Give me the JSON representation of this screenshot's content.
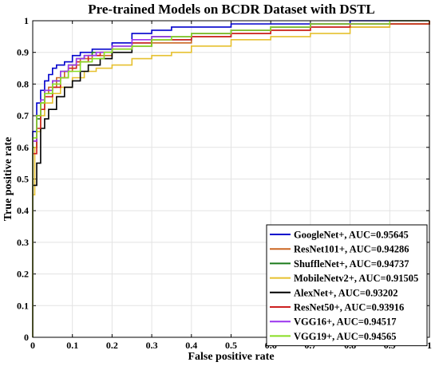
{
  "chart_data": {
    "type": "line",
    "title": "Pre-trained Models on BCDR Dataset with DSTL",
    "xlabel": "False positive rate",
    "ylabel": "True positive rate",
    "xlim": [
      0,
      1
    ],
    "ylim": [
      0,
      1
    ],
    "xticks": [
      "0",
      "0.1",
      "0.2",
      "0.3",
      "0.4",
      "0.5",
      "0.6",
      "0.7",
      "0.8",
      "0.9",
      "1"
    ],
    "yticks": [
      "0",
      "0.1",
      "0.2",
      "0.3",
      "0.4",
      "0.5",
      "0.6",
      "0.7",
      "0.8",
      "0.9",
      "1"
    ],
    "grid": true,
    "legend_position": "bottom-right",
    "series": [
      {
        "name": "GoogleNet+, AUC=0.95645",
        "color": "#0000cc",
        "x": [
          0,
          0,
          0.01,
          0.01,
          0.02,
          0.03,
          0.04,
          0.05,
          0.06,
          0.08,
          0.1,
          0.12,
          0.15,
          0.2,
          0.25,
          0.3,
          0.35,
          0.4,
          0.5,
          0.6,
          0.7,
          0.8,
          0.9,
          1
        ],
        "y": [
          0,
          0.65,
          0.68,
          0.74,
          0.78,
          0.81,
          0.83,
          0.85,
          0.86,
          0.87,
          0.89,
          0.9,
          0.91,
          0.93,
          0.96,
          0.97,
          0.98,
          0.98,
          0.99,
          0.99,
          0.99,
          1,
          1,
          1
        ]
      },
      {
        "name": "ResNet101+, AUC=0.94286",
        "color": "#cc6622",
        "x": [
          0,
          0,
          0.01,
          0.02,
          0.03,
          0.04,
          0.06,
          0.08,
          0.1,
          0.12,
          0.15,
          0.2,
          0.25,
          0.3,
          0.4,
          0.5,
          0.6,
          0.7,
          0.8,
          0.9,
          0.95,
          1
        ],
        "y": [
          0,
          0.62,
          0.7,
          0.74,
          0.77,
          0.79,
          0.82,
          0.84,
          0.86,
          0.88,
          0.89,
          0.91,
          0.92,
          0.93,
          0.95,
          0.96,
          0.97,
          0.98,
          0.98,
          0.99,
          0.99,
          1
        ]
      },
      {
        "name": "ShuffleNet+, AUC=0.94737",
        "color": "#1a7a1a",
        "x": [
          0,
          0,
          0.01,
          0.02,
          0.03,
          0.05,
          0.07,
          0.09,
          0.11,
          0.13,
          0.15,
          0.2,
          0.25,
          0.3,
          0.4,
          0.5,
          0.6,
          0.7,
          0.8,
          0.9,
          1
        ],
        "y": [
          0,
          0.6,
          0.69,
          0.74,
          0.78,
          0.81,
          0.84,
          0.86,
          0.88,
          0.89,
          0.9,
          0.92,
          0.93,
          0.95,
          0.96,
          0.97,
          0.98,
          0.99,
          0.99,
          0.99,
          1
        ]
      },
      {
        "name": "MobileNetv2+, AUC=0.91505",
        "color": "#e6c02e",
        "x": [
          0,
          0,
          0.005,
          0.01,
          0.02,
          0.03,
          0.05,
          0.07,
          0.1,
          0.13,
          0.16,
          0.2,
          0.25,
          0.3,
          0.35,
          0.4,
          0.5,
          0.6,
          0.7,
          0.8,
          0.9,
          0.95,
          1
        ],
        "y": [
          0,
          0.45,
          0.6,
          0.65,
          0.7,
          0.74,
          0.77,
          0.79,
          0.82,
          0.84,
          0.85,
          0.86,
          0.88,
          0.89,
          0.9,
          0.92,
          0.94,
          0.95,
          0.96,
          0.98,
          0.99,
          0.99,
          1
        ]
      },
      {
        "name": "AlexNet+, AUC=0.93202",
        "color": "#000000",
        "x": [
          0,
          0,
          0.01,
          0.01,
          0.02,
          0.02,
          0.03,
          0.04,
          0.06,
          0.08,
          0.1,
          0.12,
          0.14,
          0.17,
          0.2,
          0.25,
          0.3,
          0.4,
          0.5,
          0.6,
          0.7,
          0.8,
          0.9,
          1
        ],
        "y": [
          0,
          0.48,
          0.5,
          0.55,
          0.6,
          0.66,
          0.69,
          0.72,
          0.76,
          0.79,
          0.81,
          0.84,
          0.86,
          0.88,
          0.9,
          0.92,
          0.94,
          0.96,
          0.97,
          0.98,
          0.99,
          0.99,
          1,
          1
        ]
      },
      {
        "name": "ResNet50+, AUC=0.93916",
        "color": "#cc2020",
        "x": [
          0,
          0,
          0.01,
          0.02,
          0.03,
          0.05,
          0.07,
          0.09,
          0.11,
          0.14,
          0.17,
          0.2,
          0.25,
          0.3,
          0.4,
          0.5,
          0.6,
          0.7,
          0.8,
          0.9,
          1
        ],
        "y": [
          0,
          0.58,
          0.66,
          0.72,
          0.76,
          0.79,
          0.82,
          0.85,
          0.87,
          0.89,
          0.9,
          0.91,
          0.93,
          0.94,
          0.95,
          0.96,
          0.97,
          0.98,
          0.99,
          0.99,
          1
        ]
      },
      {
        "name": "VGG16+, AUC=0.94517",
        "color": "#9a33ee",
        "x": [
          0,
          0,
          0.01,
          0.02,
          0.03,
          0.05,
          0.07,
          0.09,
          0.11,
          0.13,
          0.16,
          0.2,
          0.25,
          0.3,
          0.4,
          0.5,
          0.6,
          0.7,
          0.8,
          0.9,
          1
        ],
        "y": [
          0,
          0.62,
          0.7,
          0.75,
          0.78,
          0.81,
          0.84,
          0.86,
          0.88,
          0.89,
          0.9,
          0.92,
          0.94,
          0.95,
          0.96,
          0.97,
          0.98,
          0.99,
          0.99,
          1,
          1
        ]
      },
      {
        "name": "VGG19+, AUC=0.94565",
        "color": "#88dd22",
        "x": [
          0,
          0,
          0.01,
          0.02,
          0.03,
          0.05,
          0.07,
          0.09,
          0.12,
          0.15,
          0.18,
          0.2,
          0.25,
          0.3,
          0.35,
          0.4,
          0.5,
          0.6,
          0.7,
          0.8,
          0.9,
          1
        ],
        "y": [
          0,
          0.63,
          0.7,
          0.74,
          0.77,
          0.8,
          0.82,
          0.84,
          0.87,
          0.88,
          0.9,
          0.91,
          0.92,
          0.94,
          0.95,
          0.96,
          0.97,
          0.98,
          0.99,
          0.99,
          1,
          1
        ]
      }
    ]
  }
}
